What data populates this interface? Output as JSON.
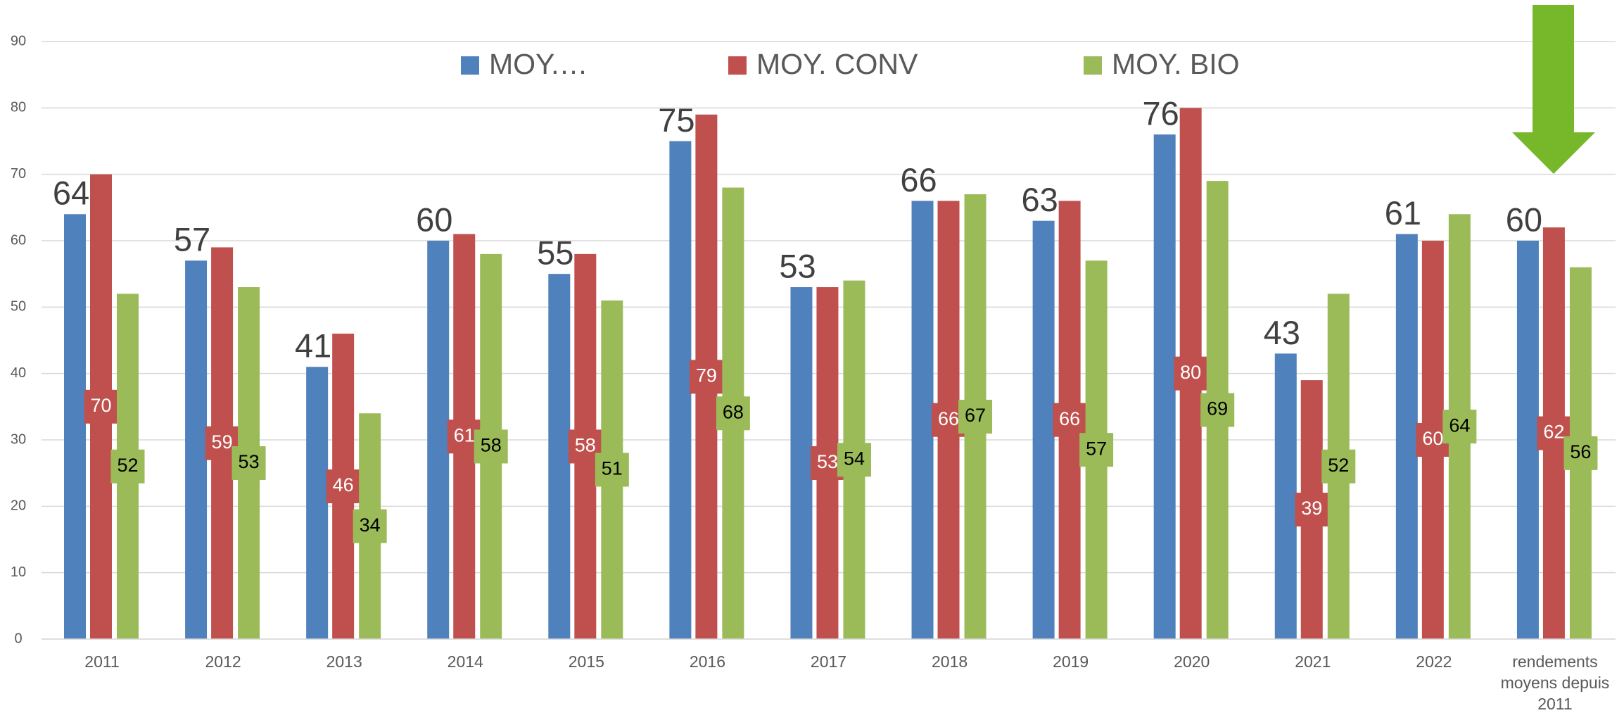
{
  "chart_data": {
    "type": "bar",
    "categories": [
      "2011",
      "2012",
      "2013",
      "2014",
      "2015",
      "2016",
      "2017",
      "2018",
      "2019",
      "2020",
      "2021",
      "2022",
      "rendements\nmoyens depuis\n2011"
    ],
    "series": [
      {
        "name": "MOY.…",
        "color": "#4f81bd",
        "values": [
          64,
          57,
          41,
          60,
          55,
          75,
          53,
          66,
          63,
          76,
          43,
          61,
          60
        ]
      },
      {
        "name": "MOY. CONV",
        "color": "#c0504d",
        "values": [
          70,
          59,
          46,
          61,
          58,
          79,
          53,
          66,
          66,
          80,
          39,
          60,
          62
        ]
      },
      {
        "name": "MOY. BIO",
        "color": "#9bbb59",
        "values": [
          52,
          53,
          34,
          58,
          51,
          68,
          54,
          67,
          57,
          69,
          52,
          64,
          56
        ]
      }
    ],
    "ylim": [
      0,
      90
    ],
    "yticks": [
      0,
      10,
      20,
      30,
      40,
      50,
      60,
      70,
      80,
      90
    ],
    "grid": true,
    "legend": "top"
  }
}
